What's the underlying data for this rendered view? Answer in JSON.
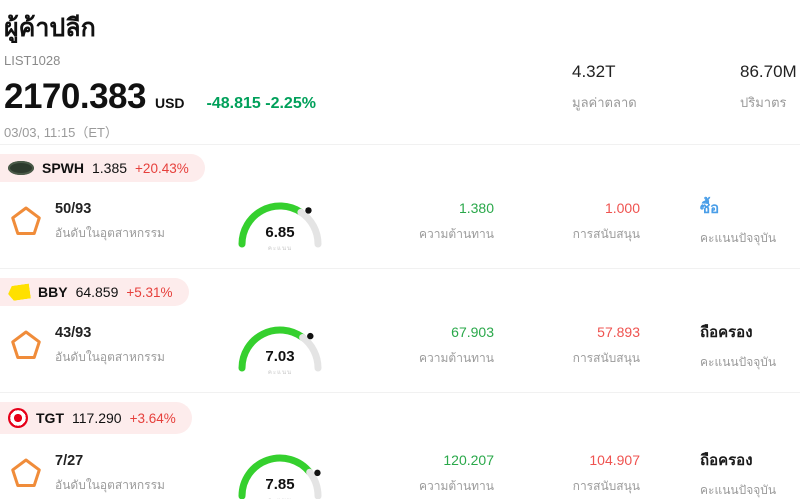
{
  "colors": {
    "accent_green": "#00a05a",
    "negative_red": "#e6403c",
    "value_green": "#2aa84a",
    "value_red": "#ef5350",
    "buy_blue": "#4a9ee8",
    "pill_bg": "#fdecec",
    "gauge_green": "#35d02e",
    "gauge_track": "#e4e4e4"
  },
  "header": {
    "title": "ผู้ค้าปลีก",
    "list_id": "LIST1028",
    "price": "2170.383",
    "currency": "USD",
    "change": "-48.815 -2.25%",
    "datetime": "03/03, 11:15（ET）",
    "market_cap_value": "4.32T",
    "market_cap_label": "มูลค่าตลาด",
    "volume_value": "86.70M",
    "volume_label": "ปริมาตร"
  },
  "labels": {
    "rank": "อันดับในอุตสาหกรรม",
    "resistance": "ความต้านทาน",
    "support": "การสนับสนุน",
    "current_score": "คะแนนปัจจุบัน",
    "score": "คะแนน"
  },
  "rows": [
    {
      "ticker": "SPWH",
      "price": "1.385",
      "change": "+20.43%",
      "rank": "50/93",
      "score": "6.85",
      "score_value": 6.85,
      "resistance": "1.380",
      "support": "1.000",
      "action": "ซื้อ",
      "action_color": "#4a9ee8",
      "logo": "spwh"
    },
    {
      "ticker": "BBY",
      "price": "64.859",
      "change": "+5.31%",
      "rank": "43/93",
      "score": "7.03",
      "score_value": 7.03,
      "resistance": "67.903",
      "support": "57.893",
      "action": "ถือครอง",
      "action_color": "#1a1a1a",
      "logo": "bby"
    },
    {
      "ticker": "TGT",
      "price": "117.290",
      "change": "+3.64%",
      "rank": "7/27",
      "score": "7.85",
      "score_value": 7.85,
      "resistance": "120.207",
      "support": "104.907",
      "action": "ถือครอง",
      "action_color": "#1a1a1a",
      "logo": "tgt"
    }
  ]
}
